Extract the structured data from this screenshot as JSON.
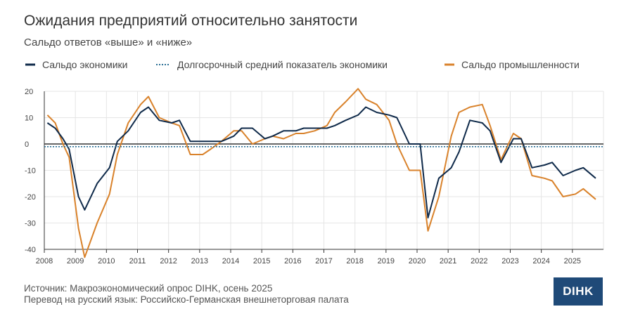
{
  "title": "Ожидания предприятий относительно занятости",
  "subtitle": "Сальдо ответов «выше» и «ниже»",
  "legend": {
    "economy": "Сальдо экономики",
    "longterm": "Долгосрочный средний показатель экономики",
    "industry": "Сальдо промышленности"
  },
  "colors": {
    "economy": "#0f2a4a",
    "longterm": "#2b6f95",
    "industry": "#d9822b",
    "axis": "#333333",
    "grid": "#e5e5e5",
    "logo_bg": "#1f4a78"
  },
  "source_line1": "Источник: Макроэкономический опрос DIHK, осень 2025",
  "source_line2": "Перевод на русский язык: Российско-Германская внешнеторговая палата",
  "logo_text": "DIHK",
  "chart_data": {
    "type": "line",
    "title": "Ожидания предприятий относительно занятости",
    "ylim": [
      -40,
      20
    ],
    "yticks": [
      "20",
      "10",
      "0",
      "-10",
      "-20",
      "-30",
      "-40"
    ],
    "xticks": [
      "2008",
      "2009",
      "2010",
      "2011",
      "2012",
      "2013",
      "2014",
      "2015",
      "2016",
      "2017",
      "2018",
      "2019",
      "2020",
      "2021",
      "2022",
      "2023",
      "2024",
      "2025"
    ],
    "x_range": [
      2008,
      2026
    ],
    "series": [
      {
        "name": "Сальдо экономики",
        "x": [
          2008.1,
          2008.35,
          2008.6,
          2008.8,
          2009.1,
          2009.3,
          2009.7,
          2010.1,
          2010.35,
          2010.7,
          2011.1,
          2011.35,
          2011.7,
          2012.1,
          2012.35,
          2012.7,
          2013.1,
          2013.35,
          2013.7,
          2014.1,
          2014.35,
          2014.7,
          2015.1,
          2015.35,
          2015.7,
          2016.1,
          2016.35,
          2016.7,
          2017.1,
          2017.35,
          2017.7,
          2018.1,
          2018.35,
          2018.7,
          2019.1,
          2019.35,
          2019.75,
          2020.1,
          2020.35,
          2020.7,
          2021.1,
          2021.35,
          2021.7,
          2022.1,
          2022.35,
          2022.7,
          2023.1,
          2023.35,
          2023.7,
          2024.1,
          2024.35,
          2024.7,
          2025.1,
          2025.35,
          2025.75
        ],
        "values": [
          8,
          6,
          2,
          -2,
          -20,
          -25,
          -15,
          -9,
          1,
          5,
          12,
          14,
          9,
          8,
          9,
          1,
          1,
          1,
          1,
          3,
          6,
          6,
          2,
          3,
          5,
          5,
          6,
          6,
          6,
          7,
          9,
          11,
          14,
          12,
          11,
          10,
          0,
          0,
          -28,
          -13,
          -9,
          -3,
          9,
          8,
          5,
          -7,
          2,
          2,
          -9,
          -8,
          -7,
          -12,
          -10,
          -9,
          -13
        ]
      },
      {
        "name": "Долгосрочный средний показатель экономики",
        "x": [
          2008,
          2026
        ],
        "values": [
          -1,
          -1
        ]
      },
      {
        "name": "Сальдо промышленности",
        "x": [
          2008.1,
          2008.35,
          2008.6,
          2008.8,
          2009.1,
          2009.3,
          2009.7,
          2010.1,
          2010.35,
          2010.7,
          2011.1,
          2011.35,
          2011.7,
          2012.1,
          2012.35,
          2012.7,
          2013.1,
          2013.35,
          2013.7,
          2014.1,
          2014.35,
          2014.7,
          2015.1,
          2015.35,
          2015.7,
          2016.1,
          2016.35,
          2016.7,
          2017.1,
          2017.35,
          2017.7,
          2018.1,
          2018.35,
          2018.7,
          2019.1,
          2019.35,
          2019.75,
          2020.1,
          2020.35,
          2020.7,
          2021.1,
          2021.35,
          2021.7,
          2022.1,
          2022.35,
          2022.7,
          2023.1,
          2023.35,
          2023.7,
          2024.1,
          2024.35,
          2024.7,
          2025.1,
          2025.35,
          2025.75
        ],
        "values": [
          11,
          8,
          0,
          -5,
          -32,
          -43,
          -30,
          -19,
          -4,
          8,
          15,
          18,
          10,
          8,
          7,
          -4,
          -4,
          -2,
          1,
          5,
          5,
          0,
          2,
          3,
          2,
          4,
          4,
          5,
          7,
          12,
          16,
          21,
          17,
          15,
          9,
          0,
          -10,
          -10,
          -33,
          -20,
          3,
          12,
          14,
          15,
          7,
          -6,
          4,
          2,
          -12,
          -13,
          -14,
          -20,
          -19,
          -17,
          -21
        ]
      }
    ]
  }
}
